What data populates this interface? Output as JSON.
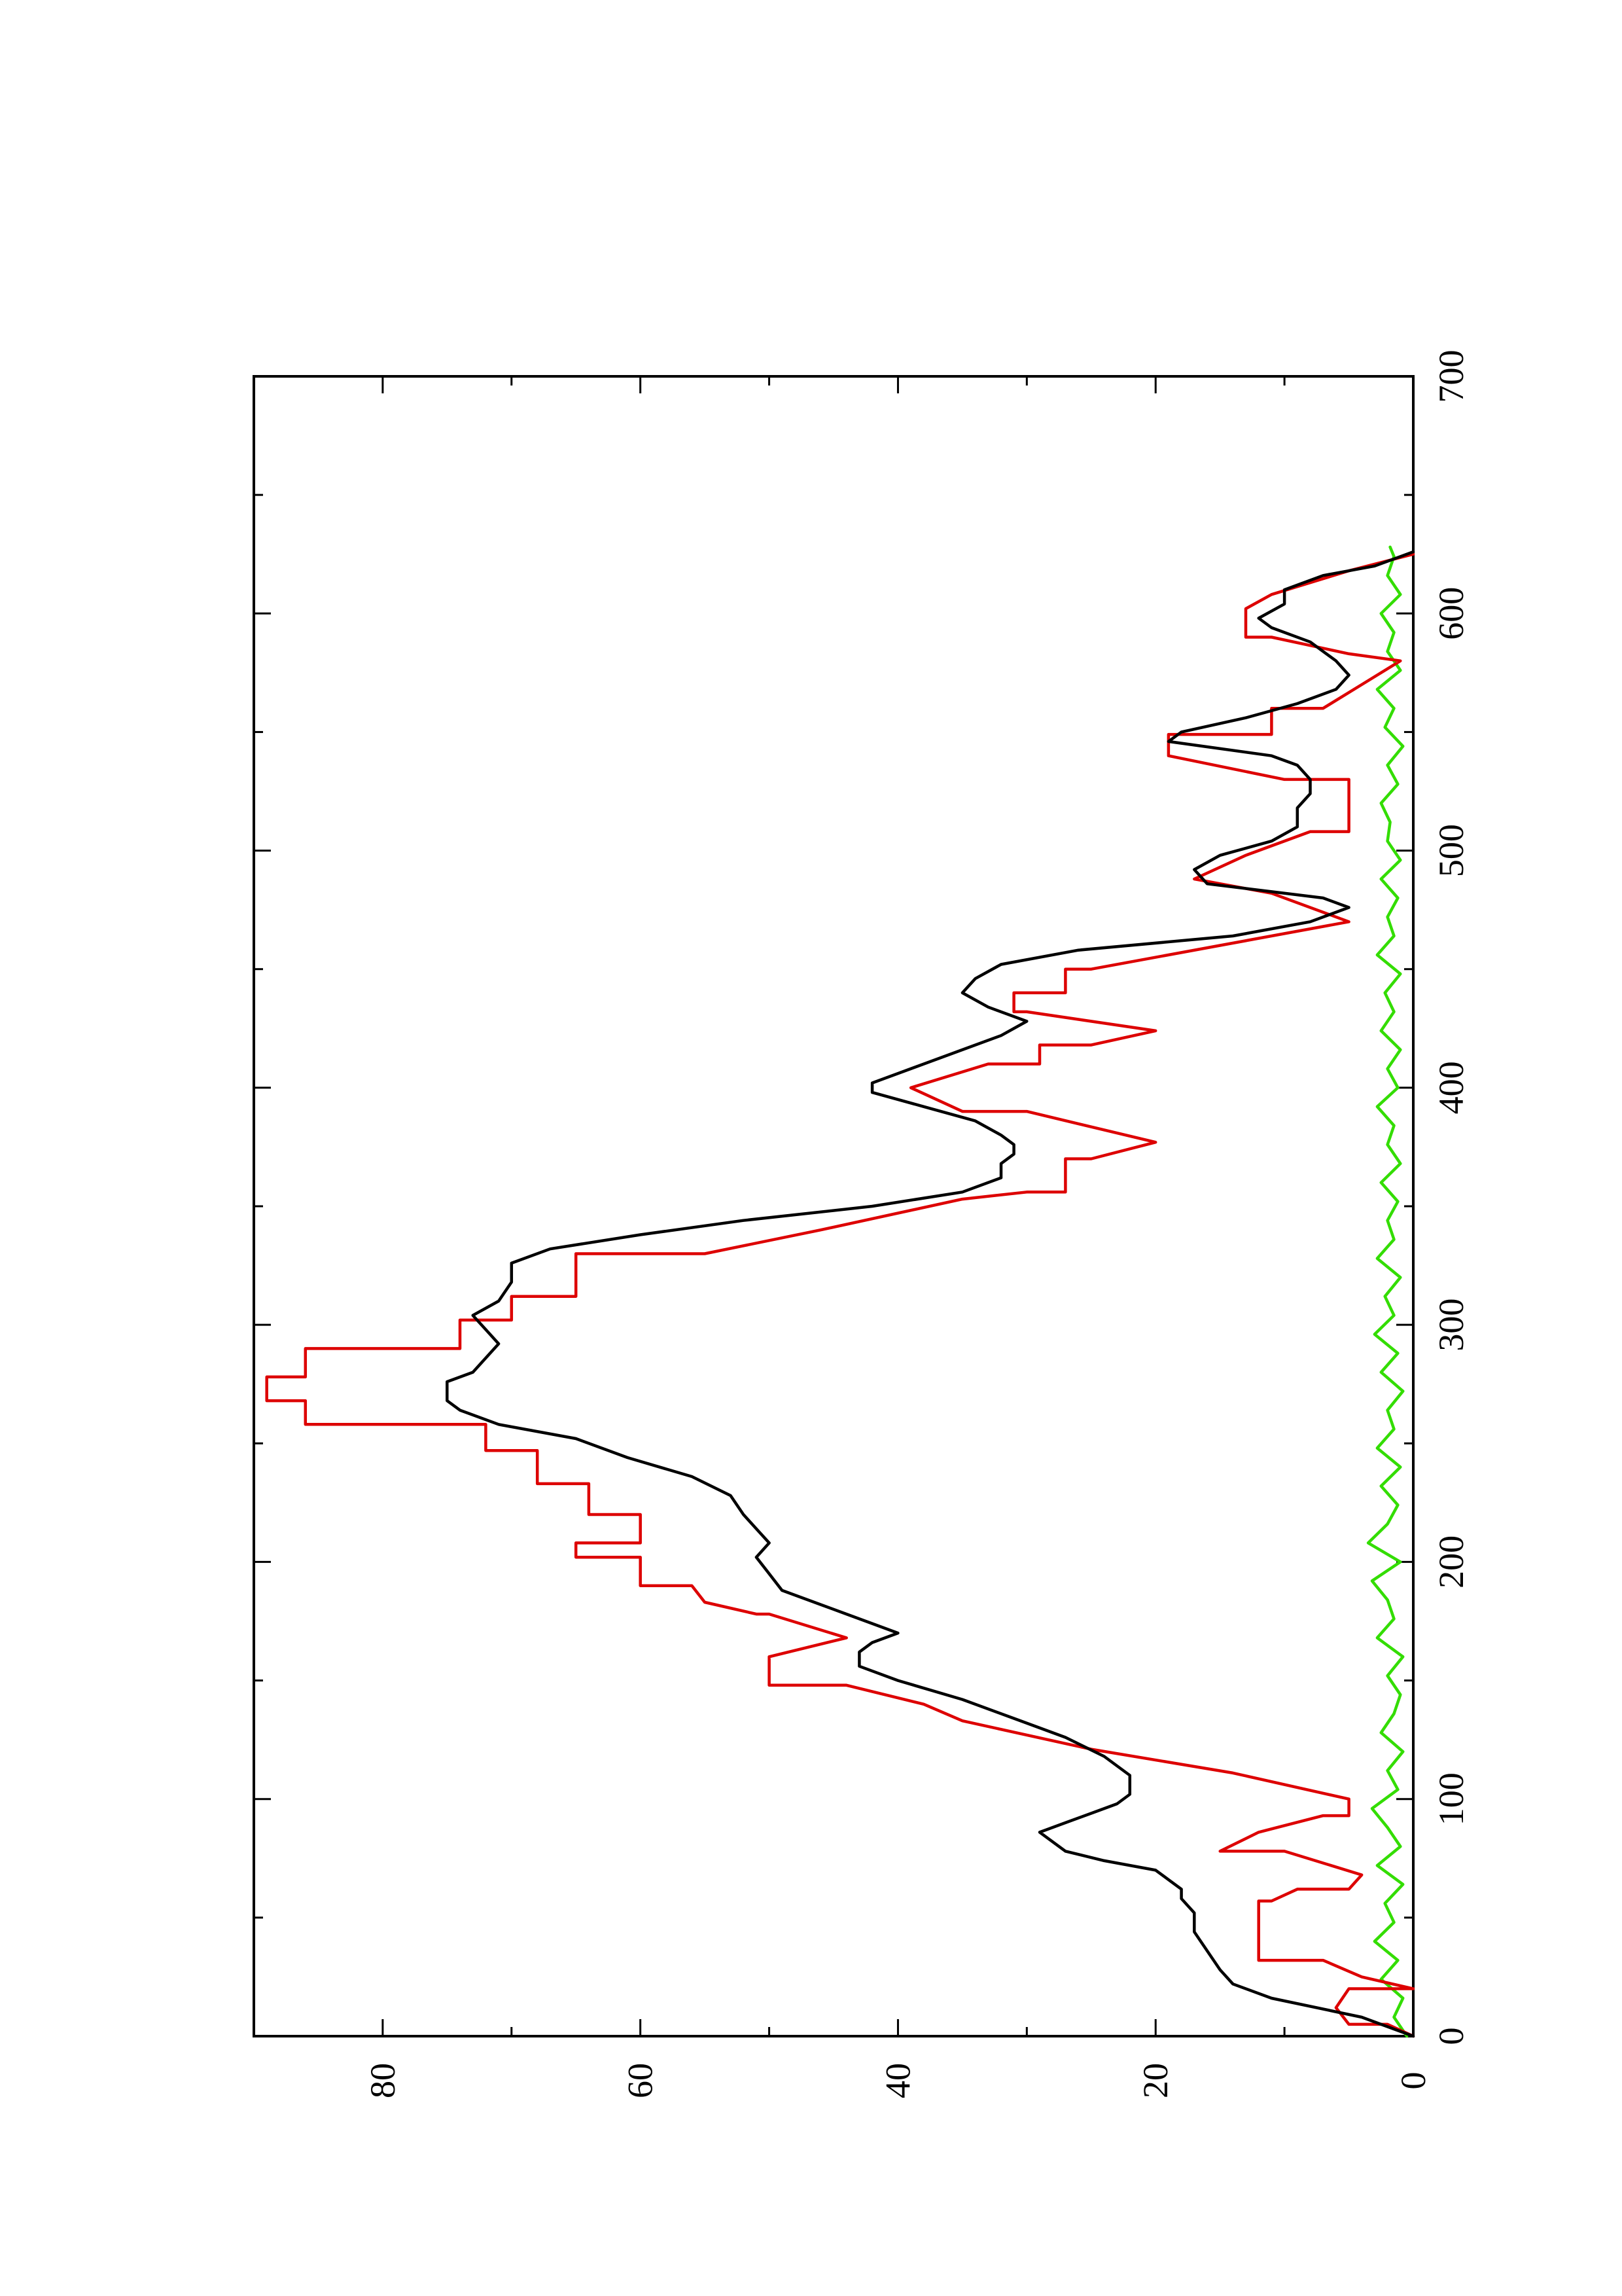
{
  "chart_data": {
    "type": "line",
    "orientation": "rotated-90-ccw",
    "xlim": [
      0,
      700
    ],
    "ylim": [
      0,
      90
    ],
    "x_ticks": [
      0,
      100,
      200,
      300,
      400,
      500,
      600,
      700
    ],
    "x_tick_labels": [
      "0",
      "100",
      "200",
      "300",
      "400",
      "500",
      "600",
      "700"
    ],
    "x_minor_ticks": [
      50,
      150,
      250,
      350,
      450,
      550,
      650
    ],
    "y_ticks": [
      0,
      20,
      40,
      60,
      80
    ],
    "y_tick_labels": [
      "0",
      "20",
      "40",
      "60",
      "80"
    ],
    "y_minor_ticks": [
      10,
      30,
      50,
      70
    ],
    "grid": false,
    "legend": "none",
    "title": "",
    "xlabel": "",
    "ylabel": "",
    "series": [
      {
        "color": "#dd0000",
        "style": "step",
        "x": [
          0,
          5,
          5,
          12,
          20,
          20,
          25,
          32,
          32,
          57,
          57,
          62,
          62,
          68,
          78,
          78,
          86,
          93,
          93,
          100,
          111,
          121,
          133,
          140,
          148,
          148,
          160,
          168,
          178,
          178,
          183,
          190,
          190,
          202,
          202,
          208,
          208,
          220,
          220,
          233,
          233,
          247,
          247,
          258,
          258,
          268,
          268,
          278,
          278,
          290,
          290,
          302,
          302,
          312,
          312,
          330,
          330,
          340,
          353,
          356,
          356,
          370,
          370,
          377,
          390,
          390,
          400,
          410,
          410,
          418,
          418,
          424,
          432,
          432,
          440,
          440,
          450,
          450,
          460,
          470,
          470,
          482,
          488,
          488,
          498,
          508,
          508,
          530,
          530,
          540,
          549,
          549,
          560,
          560,
          570,
          580,
          583,
          590,
          590,
          602,
          608,
          608,
          618,
          625
        ],
        "y": [
          0,
          2,
          5,
          6,
          5,
          0,
          4,
          7,
          12,
          12,
          11,
          9,
          5,
          4,
          10,
          15,
          12,
          7,
          5,
          5,
          14,
          25,
          35,
          38,
          44,
          50,
          50,
          44,
          50,
          51,
          55,
          56,
          60,
          60,
          65,
          65,
          60,
          60,
          64,
          64,
          68,
          68,
          72,
          72,
          86,
          86,
          89,
          89,
          86,
          86,
          74,
          74,
          70,
          70,
          65,
          65,
          55,
          46,
          35,
          30,
          27,
          27,
          25,
          20,
          30,
          35,
          39,
          33,
          29,
          29,
          25,
          20,
          30,
          31,
          31,
          27,
          27,
          25,
          15,
          5,
          5,
          11,
          17,
          17,
          13,
          8,
          5,
          5,
          10,
          19,
          19,
          11,
          11,
          7,
          4,
          1,
          5,
          11,
          13,
          13,
          11,
          11,
          5,
          0
        ]
      },
      {
        "color": "#000000",
        "style": "line",
        "x": [
          0,
          8,
          16,
          22,
          28,
          36,
          44,
          52,
          58,
          62,
          66,
          70,
          74,
          78,
          82,
          86,
          90,
          94,
          98,
          102,
          110,
          118,
          126,
          134,
          142,
          150,
          156,
          162,
          166,
          170,
          174,
          178,
          182,
          188,
          195,
          202,
          208,
          214,
          220,
          228,
          236,
          244,
          252,
          258,
          264,
          268,
          272,
          276,
          280,
          286,
          292,
          298,
          304,
          310,
          318,
          326,
          332,
          338,
          344,
          350,
          356,
          362,
          368,
          372,
          376,
          380,
          386,
          392,
          398,
          402,
          406,
          410,
          416,
          422,
          428,
          434,
          440,
          446,
          452,
          458,
          464,
          470,
          476,
          480,
          486,
          492,
          498,
          504,
          510,
          518,
          524,
          530,
          536,
          540,
          546,
          550,
          556,
          562,
          568,
          574,
          580,
          584,
          588,
          594,
          598,
          604,
          610,
          616,
          620,
          626
        ],
        "y": [
          0,
          4,
          11,
          14,
          15,
          16,
          17,
          17,
          18,
          18,
          19,
          20,
          24,
          27,
          28,
          29,
          27,
          25,
          23,
          22,
          22,
          24,
          27,
          31,
          35,
          40,
          43,
          43,
          42,
          40,
          42,
          44,
          46,
          49,
          50,
          51,
          50,
          51,
          52,
          53,
          56,
          61,
          65,
          71,
          74,
          75,
          75,
          75,
          73,
          72,
          71,
          72,
          73,
          71,
          70,
          70,
          67,
          60,
          52,
          42,
          35,
          32,
          32,
          31,
          31,
          32,
          34,
          38,
          42,
          42,
          40,
          38,
          35,
          32,
          30,
          33,
          35,
          34,
          32,
          26,
          14,
          8,
          5,
          7,
          16,
          17,
          15,
          11,
          9,
          9,
          8,
          8,
          9,
          11,
          19,
          18,
          13,
          9,
          6,
          5,
          6,
          7,
          8,
          11,
          12,
          10,
          10,
          7,
          3,
          0
        ]
      },
      {
        "color": "#33dd00",
        "style": "line",
        "x": [
          0,
          8,
          16,
          24,
          32,
          40,
          48,
          56,
          64,
          72,
          80,
          88,
          96,
          104,
          112,
          120,
          128,
          136,
          144,
          152,
          160,
          168,
          176,
          184,
          192,
          200,
          208,
          216,
          224,
          232,
          240,
          248,
          256,
          264,
          272,
          280,
          288,
          296,
          304,
          312,
          320,
          328,
          336,
          344,
          352,
          360,
          368,
          376,
          384,
          392,
          400,
          408,
          416,
          424,
          432,
          440,
          448,
          456,
          464,
          472,
          480,
          488,
          496,
          504,
          512,
          520,
          528,
          536,
          544,
          552,
          560,
          568,
          576,
          584,
          592,
          600,
          608,
          616,
          624,
          628
        ],
        "y": [
          0.5,
          1.5,
          0.8,
          2.5,
          1.2,
          3,
          1.5,
          2.2,
          0.8,
          2.8,
          1,
          2,
          3.2,
          1.2,
          2,
          0.8,
          2.5,
          1.5,
          1,
          2,
          0.8,
          2.8,
          1.5,
          2,
          3.2,
          1,
          3.5,
          2,
          1.2,
          2.5,
          1,
          2.8,
          1.5,
          2,
          0.8,
          2.5,
          1.2,
          3,
          1.5,
          2.2,
          1,
          2.8,
          1.5,
          2,
          1.2,
          2.5,
          1,
          2,
          1.5,
          2.8,
          1.2,
          2,
          1,
          2.5,
          1.5,
          2.2,
          1,
          2.8,
          1.5,
          2,
          1.2,
          2.5,
          1,
          2,
          1.8,
          2.5,
          1.2,
          2,
          0.8,
          2.2,
          1.5,
          2.8,
          1,
          2,
          1.5,
          2.5,
          1,
          2,
          1.5,
          1.8
        ]
      }
    ]
  }
}
